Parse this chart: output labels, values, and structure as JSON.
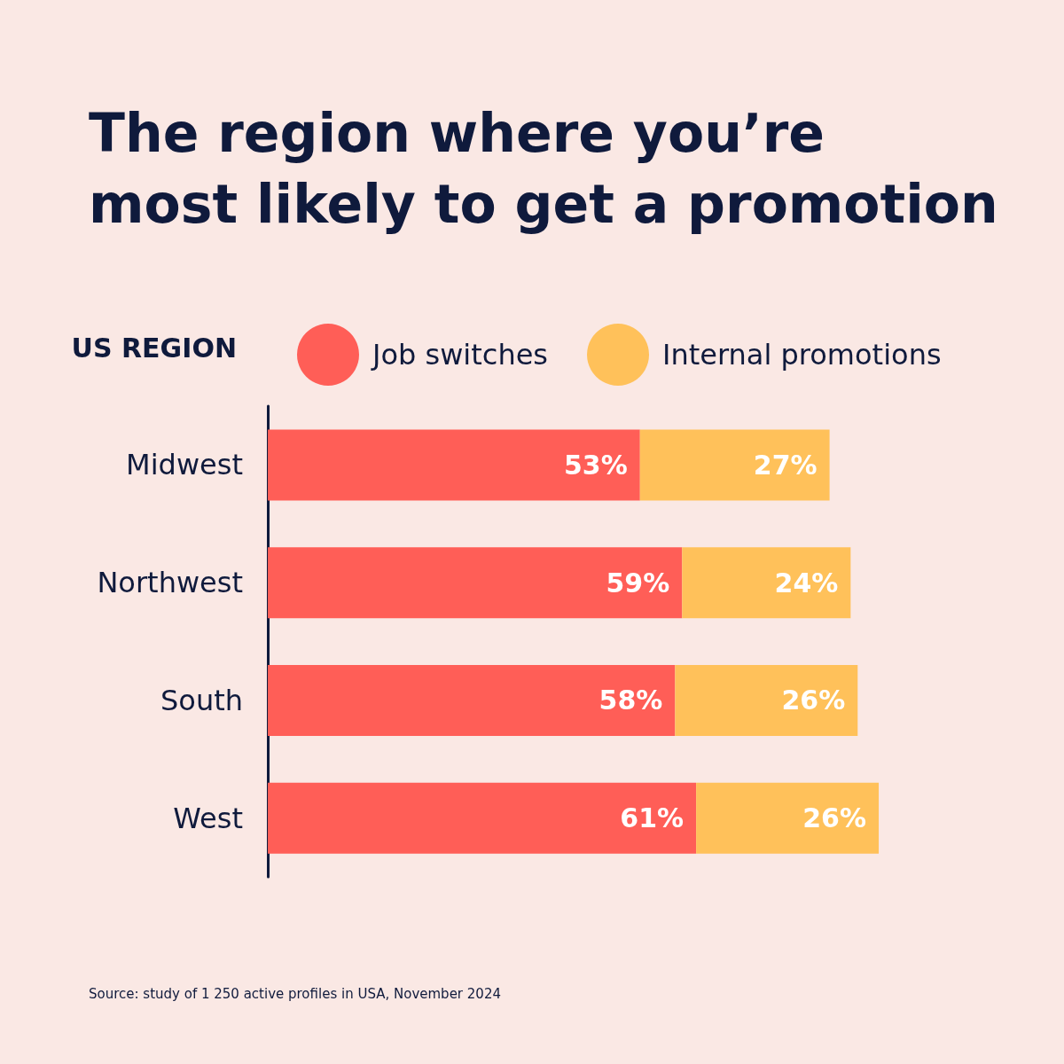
{
  "chart_data": {
    "type": "bar",
    "orientation": "horizontal",
    "stacked": true,
    "title": "The region where you’re most likely to get a promotion",
    "ylabel": "US REGION",
    "categories": [
      "Midwest",
      "Northwest",
      "South",
      "West"
    ],
    "series": [
      {
        "name": "Job switches",
        "color": "#ff5e57",
        "values": [
          53,
          59,
          58,
          61
        ],
        "value_labels": [
          "53%",
          "59%",
          "58%",
          "61%"
        ]
      },
      {
        "name": "Internal promotions",
        "color": "#ffc15a",
        "values": [
          27,
          24,
          26,
          26
        ],
        "value_labels": [
          "27%",
          "24%",
          "26%",
          "26%"
        ]
      }
    ],
    "legend": "top",
    "annotations": [
      "Source: study of 1 250 active profiles in USA, November 2024"
    ]
  }
}
